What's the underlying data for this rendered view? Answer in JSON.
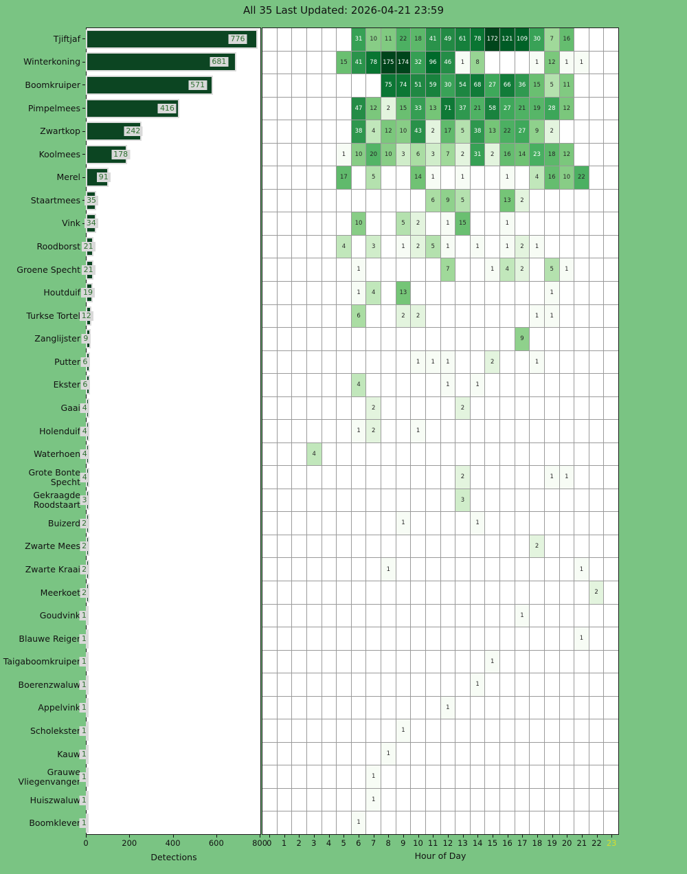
{
  "title": "All 35 Last Updated: 2026-04-21 23:59",
  "colors": {
    "page_background": "#7ac483",
    "bar_fill": "#0c4522",
    "bar_edge": "#dcdcdc",
    "value_label_bg": "#d9d9d9",
    "value_label_fg": "#2e7031",
    "grid_line": "#9a9a9a",
    "highlight_hour_fg": "#d5dd2e",
    "heat_text_dark": "#262626",
    "heat_text_light": "#ffffff"
  },
  "chart_data": [
    {
      "type": "bar",
      "orientation": "horizontal",
      "xlabel": "Detections",
      "xticks": [
        0,
        200,
        400,
        600,
        800
      ],
      "xlim": [
        0,
        806
      ],
      "categories": [
        "Tjiftjaf",
        "Winterkoning",
        "Boomkruiper",
        "Pimpelmees",
        "Zwartkop",
        "Koolmees",
        "Merel",
        "Staartmees",
        "Vink",
        "Roodborst",
        "Groene Specht",
        "Houtduif",
        "Turkse Tortel",
        "Zanglijster",
        "Putter",
        "Ekster",
        "Gaai",
        "Holenduif",
        "Waterhoen",
        "Grote Bonte Specht",
        "Gekraagde Roodstaart",
        "Buizerd",
        "Zwarte Mees",
        "Zwarte Kraai",
        "Meerkoet",
        "Goudvink",
        "Blauwe Reiger",
        "Taigaboomkruiper",
        "Boerenzwaluw",
        "Appelvink",
        "Scholekster",
        "Kauw",
        "Grauwe Vliegenvanger",
        "Huiszwaluw",
        "Boomklever"
      ],
      "values": [
        776,
        681,
        571,
        416,
        242,
        178,
        91,
        35,
        34,
        21,
        21,
        19,
        12,
        9,
        6,
        6,
        4,
        4,
        4,
        4,
        3,
        2,
        2,
        2,
        2,
        1,
        1,
        1,
        1,
        1,
        1,
        1,
        1,
        1,
        1
      ]
    },
    {
      "type": "heatmap",
      "xlabel": "Hour of Day",
      "x": [
        0,
        1,
        2,
        3,
        4,
        5,
        6,
        7,
        8,
        9,
        10,
        11,
        12,
        13,
        14,
        15,
        16,
        17,
        18,
        19,
        20,
        21,
        22,
        23
      ],
      "highlight_x": 23,
      "colormap": "Greens",
      "norm": "log",
      "vmin": 1,
      "vmax": 175,
      "grid": true,
      "rows": [
        {
          "name": "Tjiftjaf",
          "cells": {
            "6": 31,
            "7": 10,
            "8": 11,
            "9": 22,
            "10": 18,
            "11": 41,
            "12": 49,
            "13": 61,
            "14": 78,
            "15": 172,
            "16": 121,
            "17": 109,
            "18": 30,
            "19": 7,
            "20": 16
          }
        },
        {
          "name": "Winterkoning",
          "cells": {
            "5": 15,
            "6": 41,
            "7": 78,
            "8": 175,
            "9": 174,
            "10": 32,
            "11": 96,
            "12": 46,
            "13": 1,
            "14": 8,
            "18": 1,
            "19": 12,
            "20": 1,
            "21": 1
          }
        },
        {
          "name": "Boomkruiper",
          "cells": {
            "8": 75,
            "9": 74,
            "10": 51,
            "11": 59,
            "12": 30,
            "13": 54,
            "14": 68,
            "15": 27,
            "16": 66,
            "17": 36,
            "18": 15,
            "19": 5,
            "20": 11
          }
        },
        {
          "name": "Pimpelmees",
          "cells": {
            "6": 47,
            "7": 12,
            "8": 2,
            "9": 15,
            "10": 33,
            "11": 13,
            "12": 71,
            "13": 37,
            "14": 21,
            "15": 58,
            "16": 27,
            "17": 21,
            "18": 19,
            "19": 28,
            "20": 12
          }
        },
        {
          "name": "Zwartkop",
          "cells": {
            "6": 38,
            "7": 4,
            "8": 12,
            "9": 10,
            "10": 43,
            "11": 2,
            "12": 17,
            "13": 5,
            "14": 38,
            "15": 13,
            "16": 22,
            "17": 27,
            "18": 9,
            "19": 2
          }
        },
        {
          "name": "Koolmees",
          "cells": {
            "5": 1,
            "6": 10,
            "7": 20,
            "8": 10,
            "9": 3,
            "10": 6,
            "11": 3,
            "12": 7,
            "13": 2,
            "14": 31,
            "15": 2,
            "16": 16,
            "17": 14,
            "18": 23,
            "19": 18,
            "20": 12
          }
        },
        {
          "name": "Merel",
          "cells": {
            "5": 17,
            "7": 5,
            "10": 14,
            "11": 1,
            "13": 1,
            "16": 1,
            "18": 4,
            "19": 16,
            "20": 10,
            "21": 22
          }
        },
        {
          "name": "Staartmees",
          "cells": {
            "11": 6,
            "12": 9,
            "13": 5,
            "16": 13,
            "17": 2
          }
        },
        {
          "name": "Vink",
          "cells": {
            "6": 10,
            "9": 5,
            "10": 2,
            "12": 1,
            "13": 15,
            "16": 1
          }
        },
        {
          "name": "Roodborst",
          "cells": {
            "5": 4,
            "7": 3,
            "9": 1,
            "10": 2,
            "11": 5,
            "12": 1,
            "14": 1,
            "16": 1,
            "17": 2,
            "18": 1
          }
        },
        {
          "name": "Groene Specht",
          "cells": {
            "6": 1,
            "12": 7,
            "15": 1,
            "16": 4,
            "17": 2,
            "19": 5,
            "20": 1
          }
        },
        {
          "name": "Houtduif",
          "cells": {
            "6": 1,
            "7": 4,
            "9": 13,
            "19": 1
          }
        },
        {
          "name": "Turkse Tortel",
          "cells": {
            "6": 6,
            "9": 2,
            "10": 2,
            "18": 1,
            "19": 1
          }
        },
        {
          "name": "Zanglijster",
          "cells": {
            "17": 9
          }
        },
        {
          "name": "Putter",
          "cells": {
            "10": 1,
            "11": 1,
            "12": 1,
            "15": 2,
            "18": 1
          }
        },
        {
          "name": "Ekster",
          "cells": {
            "6": 4,
            "12": 1,
            "14": 1
          }
        },
        {
          "name": "Gaai",
          "cells": {
            "7": 2,
            "13": 2
          }
        },
        {
          "name": "Holenduif",
          "cells": {
            "6": 1,
            "7": 2,
            "10": 1
          }
        },
        {
          "name": "Waterhoen",
          "cells": {
            "3": 4
          }
        },
        {
          "name": "Grote Bonte Specht",
          "cells": {
            "13": 2,
            "19": 1,
            "20": 1
          }
        },
        {
          "name": "Gekraagde Roodstaart",
          "cells": {
            "13": 3
          }
        },
        {
          "name": "Buizerd",
          "cells": {
            "9": 1,
            "14": 1
          }
        },
        {
          "name": "Zwarte Mees",
          "cells": {
            "18": 2
          }
        },
        {
          "name": "Zwarte Kraai",
          "cells": {
            "8": 1,
            "21": 1
          }
        },
        {
          "name": "Meerkoet",
          "cells": {
            "22": 2
          }
        },
        {
          "name": "Goudvink",
          "cells": {
            "17": 1
          }
        },
        {
          "name": "Blauwe Reiger",
          "cells": {
            "21": 1
          }
        },
        {
          "name": "Taigaboomkruiper",
          "cells": {
            "15": 1
          }
        },
        {
          "name": "Boerenzwaluw",
          "cells": {
            "14": 1
          }
        },
        {
          "name": "Appelvink",
          "cells": {
            "12": 1
          }
        },
        {
          "name": "Scholekster",
          "cells": {
            "9": 1
          }
        },
        {
          "name": "Kauw",
          "cells": {
            "8": 1
          }
        },
        {
          "name": "Grauwe Vliegenvanger",
          "cells": {
            "7": 1
          }
        },
        {
          "name": "Huiszwaluw",
          "cells": {
            "7": 1
          }
        },
        {
          "name": "Boomklever",
          "cells": {
            "6": 1
          }
        }
      ]
    }
  ]
}
